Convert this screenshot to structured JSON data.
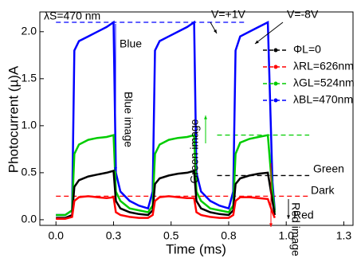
{
  "chart_data": {
    "type": "line",
    "xlabel": "Time (ms)",
    "ylabel": "Photocurrent (µ)A",
    "xlim": [
      -0.07,
      1.29
    ],
    "ylim": [
      -0.06,
      2.21
    ],
    "xticks": [
      {
        "value": 0,
        "label": "0.0"
      },
      {
        "value": 0.25,
        "label": "0.3"
      },
      {
        "value": 0.5,
        "label": "0.5"
      },
      {
        "value": 0.75,
        "label": "0.8"
      },
      {
        "value": 1,
        "label": "1.0"
      },
      {
        "value": 1.25,
        "label": "1.3"
      }
    ],
    "yticks": [
      {
        "value": 0,
        "label": "0.0"
      },
      {
        "value": 0.5,
        "label": "0.5"
      },
      {
        "value": 1,
        "label": "1.0"
      },
      {
        "value": 1.5,
        "label": "1.5"
      },
      {
        "value": 2,
        "label": "2.0"
      }
    ],
    "x": [
      0,
      0.04,
      0.07,
      0.08,
      0.1,
      0.14,
      0.18,
      0.22,
      0.25,
      0.26,
      0.28,
      0.32,
      0.36,
      0.4,
      0.42,
      0.43,
      0.45,
      0.49,
      0.53,
      0.57,
      0.6,
      0.61,
      0.63,
      0.67,
      0.71,
      0.75,
      0.77,
      0.78,
      0.8,
      0.84,
      0.88,
      0.92,
      0.94,
      0.95
    ],
    "series": [
      {
        "name": "ΦL=0",
        "color": "#000000",
        "values": [
          0.02,
          0.02,
          0.05,
          0.35,
          0.42,
          0.46,
          0.48,
          0.5,
          0.52,
          0.2,
          0.12,
          0.08,
          0.06,
          0.05,
          0.1,
          0.38,
          0.44,
          0.47,
          0.49,
          0.5,
          0.52,
          0.2,
          0.12,
          0.08,
          0.06,
          0.05,
          0.1,
          0.38,
          0.44,
          0.47,
          0.49,
          0.5,
          0.2,
          0.05
        ]
      },
      {
        "name": "λRL=626nm",
        "color": "#ff0000",
        "values": [
          0.01,
          0.01,
          0.03,
          0.2,
          0.24,
          0.25,
          0.24,
          0.23,
          0.24,
          0.08,
          0.05,
          0.03,
          0.02,
          0.02,
          0.05,
          0.2,
          0.24,
          0.25,
          0.24,
          0.23,
          0.23,
          0.08,
          0.05,
          0.03,
          0.02,
          0.02,
          0.05,
          0.2,
          0.24,
          0.24,
          0.23,
          0.22,
          0.08,
          0.02
        ]
      },
      {
        "name": "λGL=524nm",
        "color": "#00cc00",
        "values": [
          0.05,
          0.05,
          0.1,
          0.7,
          0.8,
          0.85,
          0.87,
          0.88,
          0.9,
          0.3,
          0.2,
          0.12,
          0.1,
          0.08,
          0.15,
          0.7,
          0.8,
          0.85,
          0.87,
          0.88,
          0.9,
          0.3,
          0.2,
          0.12,
          0.1,
          0.08,
          0.15,
          0.7,
          0.82,
          0.86,
          0.88,
          0.9,
          0.3,
          0.08
        ]
      },
      {
        "name": "λBL=470nm",
        "color": "#0000ff",
        "values": [
          0.05,
          0.05,
          0.1,
          1.8,
          1.9,
          1.95,
          2.0,
          2.05,
          2.1,
          0.5,
          0.3,
          0.2,
          0.15,
          0.12,
          0.3,
          1.8,
          1.9,
          1.95,
          2.0,
          2.05,
          2.1,
          0.5,
          0.3,
          0.2,
          0.15,
          0.12,
          0.3,
          1.8,
          1.95,
          2.0,
          2.05,
          2.1,
          0.4,
          0.1
        ]
      }
    ],
    "reference_lines": [
      {
        "value": 2.1,
        "color": "#0000ff"
      },
      {
        "value": 0.9,
        "color": "#00cc00"
      },
      {
        "value": 0.47,
        "color": "#000000"
      },
      {
        "value": 0.25,
        "color": "#ff0000"
      }
    ],
    "annotations": [
      "λS=470 nm",
      "Blue",
      "Blue image",
      "Green",
      "Green image",
      "Dark",
      "Red",
      "Red image",
      "V=+1V",
      "V=-8V"
    ]
  }
}
